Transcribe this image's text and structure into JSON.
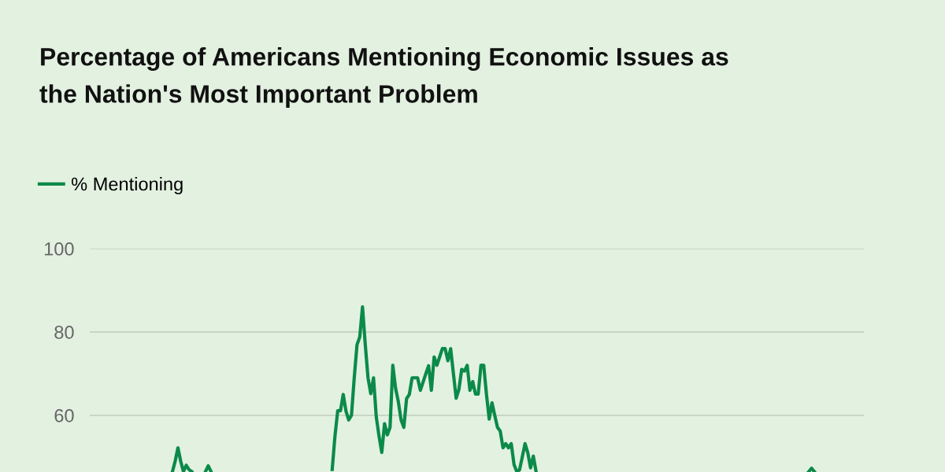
{
  "chart_data": {
    "type": "line",
    "title": "Percentage of Americans Mentioning Economic Issues as\nthe Nation's Most Important Problem",
    "categories": [
      null,
      null,
      null,
      null,
      null,
      null,
      null,
      null,
      null,
      null,
      null,
      null,
      null,
      null,
      null,
      null,
      null,
      null,
      null,
      null,
      null,
      null,
      null,
      null,
      null,
      null,
      null,
      null,
      null,
      null,
      null,
      null,
      null,
      null,
      null,
      null,
      null,
      null,
      null,
      null,
      null,
      null,
      null,
      null,
      null,
      null,
      null,
      null,
      null,
      null,
      null,
      null,
      null,
      null,
      null,
      null,
      null,
      null,
      null,
      null,
      null,
      null,
      null,
      null,
      null,
      null,
      null,
      null,
      null,
      null,
      null,
      null,
      null,
      null,
      null,
      null,
      null,
      null,
      null,
      null,
      null,
      null,
      null,
      null,
      null,
      null,
      null,
      null,
      null,
      null,
      null,
      null,
      null,
      null,
      null,
      null,
      null,
      null,
      null,
      null,
      null,
      null,
      null,
      null,
      null,
      null,
      null,
      null,
      null,
      null,
      null,
      null,
      null,
      null,
      null,
      null,
      null,
      null,
      null,
      null,
      null,
      null,
      null,
      null,
      null,
      null,
      null,
      null,
      null,
      null,
      null,
      null,
      null,
      null,
      null,
      null,
      null,
      null,
      null,
      null,
      null,
      null,
      null,
      null,
      null,
      null,
      null,
      null,
      null,
      null,
      null,
      null,
      null,
      null,
      null,
      null,
      null,
      null,
      null,
      null,
      null,
      null,
      null,
      null,
      null,
      null,
      null,
      null,
      null,
      null,
      null,
      null,
      null,
      null,
      null,
      null,
      null,
      null,
      null,
      null,
      null,
      null,
      null,
      null,
      null,
      null,
      null,
      null,
      null,
      null,
      null,
      null,
      null,
      null,
      null,
      null,
      null,
      null,
      null,
      null,
      null,
      null,
      null,
      null,
      null,
      null,
      null,
      null,
      null,
      null,
      null,
      null,
      null,
      null,
      null,
      null,
      null,
      null,
      null,
      null,
      null,
      null,
      null,
      null,
      null,
      null,
      null,
      null,
      null,
      null,
      null,
      null,
      null,
      null,
      null,
      null,
      null,
      null,
      null,
      null,
      null,
      null,
      null,
      null,
      null,
      null,
      null,
      null,
      null,
      null,
      null,
      null,
      null,
      null,
      null,
      null,
      null,
      null,
      null,
      null,
      null,
      null,
      null,
      null,
      null,
      null,
      null,
      null,
      null,
      null,
      null,
      null,
      null,
      null,
      null,
      null,
      null,
      null,
      null,
      null,
      null,
      null
    ],
    "series": [
      {
        "name": "% Mentioning",
        "color": "#0b8a4a",
        "values": [
          null,
          null,
          null,
          null,
          null,
          null,
          null,
          null,
          null,
          null,
          null,
          null,
          null,
          null,
          null,
          null,
          null,
          null,
          null,
          null,
          null,
          null,
          null,
          null,
          null,
          null,
          null,
          null,
          null,
          null,
          46.5,
          49,
          52.2,
          49,
          46.5,
          48,
          47,
          46.5,
          null,
          null,
          null,
          null,
          46.5,
          47.9,
          46.5,
          null,
          null,
          null,
          null,
          null,
          null,
          null,
          null,
          null,
          null,
          null,
          null,
          null,
          null,
          null,
          null,
          null,
          null,
          null,
          null,
          null,
          null,
          null,
          null,
          null,
          null,
          null,
          null,
          null,
          null,
          null,
          null,
          null,
          null,
          null,
          null,
          null,
          null,
          null,
          null,
          null,
          null,
          null,
          47,
          55,
          61.1,
          61.1,
          65,
          61,
          58.9,
          60,
          69,
          76.9,
          78.8,
          86,
          77,
          69,
          65.2,
          69,
          59.6,
          55,
          51.1,
          58,
          55.3,
          57.1,
          72,
          66.5,
          63.3,
          58.9,
          57.1,
          64,
          65,
          69,
          69,
          69,
          66,
          68,
          70,
          71.9,
          66,
          74,
          72,
          74,
          76,
          76,
          73.1,
          76,
          70,
          64.1,
          66.2,
          71,
          70.6,
          72,
          66,
          68.1,
          65.1,
          65.1,
          72,
          72,
          65,
          59.1,
          63,
          60,
          57.1,
          56.2,
          52.2,
          53.2,
          52.2,
          53.2,
          48.2,
          46.5,
          46.9,
          50,
          53.2,
          51,
          47.4,
          50.2,
          46.5,
          null,
          null,
          null,
          null,
          null,
          null,
          null,
          null,
          null,
          null,
          null,
          null,
          null,
          null,
          null,
          null,
          null,
          null,
          null,
          null,
          null,
          null,
          null,
          null,
          null,
          null,
          null,
          null,
          null,
          null,
          null,
          null,
          null,
          null,
          null,
          null,
          null,
          null,
          null,
          null,
          null,
          null,
          null,
          null,
          null,
          null,
          null,
          null,
          null,
          null,
          null,
          null,
          null,
          null,
          null,
          null,
          null,
          null,
          null,
          null,
          null,
          null,
          null,
          null,
          null,
          null,
          null,
          null,
          null,
          null,
          null,
          null,
          null,
          null,
          null,
          null,
          null,
          null,
          null,
          null,
          null,
          null,
          null,
          null,
          null,
          null,
          null,
          null,
          null,
          null,
          null,
          null,
          null,
          null,
          null,
          null,
          null,
          null,
          46.5,
          47.3,
          46.5,
          null,
          null,
          null,
          null,
          null,
          null,
          null,
          null,
          null,
          null,
          null,
          null,
          null,
          null,
          null,
          null,
          null,
          null
        ]
      }
    ],
    "ylim": [
      46.4,
      100
    ],
    "yticks": [
      60,
      80,
      100
    ],
    "grid": "y",
    "legend": "top left",
    "tick_labels": "y",
    "marker": "none",
    "line_style": "solid"
  }
}
